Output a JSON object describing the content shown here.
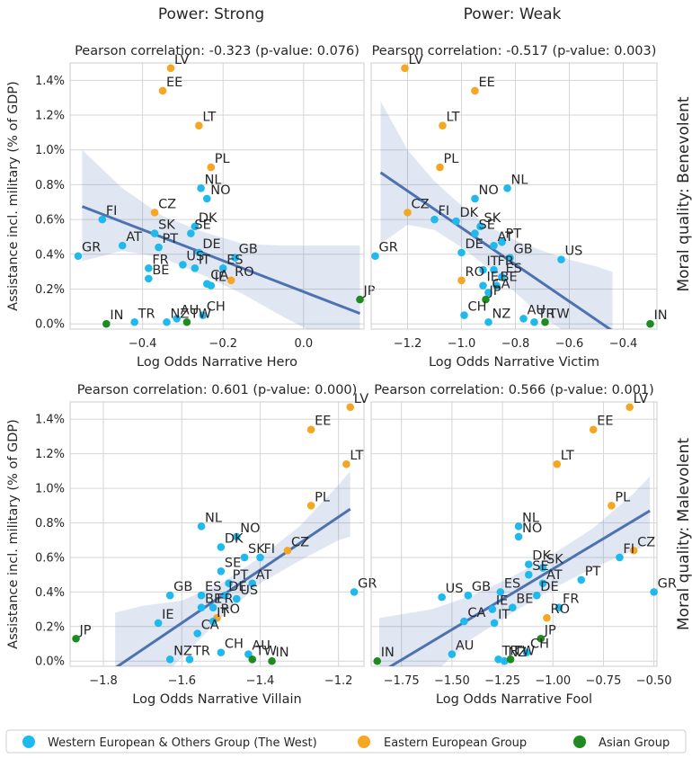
{
  "column_titles": [
    "Power: Strong",
    "Power: Weak"
  ],
  "row_titles": [
    "Moral quality: Benevolent",
    "Moral quality: Malevolent"
  ],
  "legend": [
    {
      "label": "Western European & Others Group (The West)",
      "color": "#1fb9ee"
    },
    {
      "label": "Eastern European Group",
      "color": "#f5a623"
    },
    {
      "label": "Asian Group",
      "color": "#1f8a1f"
    }
  ],
  "chart_data": [
    {
      "type": "scatter",
      "title": "Pearson correlation: -0.323 (p-value: 0.076)",
      "xlabel": "Log Odds Narrative Hero",
      "ylabel": "Assistance incl. military (% of GDP)",
      "xlim": [
        -0.58,
        0.15
      ],
      "ylim": [
        -0.03,
        1.5
      ],
      "xticks": [
        -0.4,
        -0.2,
        0.0
      ],
      "xtick_labels": [
        "−0.4",
        "−0.2",
        "0.0"
      ],
      "yticks": [
        0.0,
        0.2,
        0.4,
        0.6,
        0.8,
        1.0,
        1.2,
        1.4
      ],
      "ytick_labels": [
        "0.0%",
        "0.2%",
        "0.4%",
        "0.6%",
        "0.8%",
        "1.0%",
        "1.2%",
        "1.4%"
      ],
      "fit": {
        "x": [
          -0.55,
          0.14
        ],
        "y": [
          0.675,
          0.06
        ]
      },
      "band": {
        "x": [
          -0.55,
          -0.45,
          -0.35,
          -0.25,
          -0.15,
          -0.05,
          0.05,
          0.14
        ],
        "upper": [
          1.0,
          0.78,
          0.62,
          0.53,
          0.46,
          0.45,
          0.45,
          0.45
        ],
        "lower": [
          0.36,
          0.42,
          0.38,
          0.28,
          0.17,
          0.04,
          -0.08,
          -0.18
        ]
      },
      "points": [
        {
          "label": "LV",
          "x": -0.33,
          "y": 1.47,
          "group": 1
        },
        {
          "label": "EE",
          "x": -0.35,
          "y": 1.34,
          "group": 1
        },
        {
          "label": "LT",
          "x": -0.26,
          "y": 1.14,
          "group": 1
        },
        {
          "label": "PL",
          "x": -0.23,
          "y": 0.9,
          "group": 1
        },
        {
          "label": "NL",
          "x": -0.255,
          "y": 0.78,
          "group": 0
        },
        {
          "label": "NO",
          "x": -0.24,
          "y": 0.72,
          "group": 0
        },
        {
          "label": "CZ",
          "x": -0.37,
          "y": 0.64,
          "group": 1
        },
        {
          "label": "FI",
          "x": -0.5,
          "y": 0.6,
          "group": 0
        },
        {
          "label": "DK",
          "x": -0.27,
          "y": 0.56,
          "group": 0
        },
        {
          "label": "SE",
          "x": -0.28,
          "y": 0.52,
          "group": 0
        },
        {
          "label": "SK",
          "x": -0.37,
          "y": 0.52,
          "group": 0
        },
        {
          "label": "AT",
          "x": -0.45,
          "y": 0.45,
          "group": 0
        },
        {
          "label": "PT",
          "x": -0.36,
          "y": 0.44,
          "group": 0
        },
        {
          "label": "DE",
          "x": -0.26,
          "y": 0.41,
          "group": 0
        },
        {
          "label": "GB",
          "x": -0.17,
          "y": 0.38,
          "group": 0
        },
        {
          "label": "GR",
          "x": -0.56,
          "y": 0.39,
          "group": 0
        },
        {
          "label": "FR",
          "x": -0.385,
          "y": 0.32,
          "group": 0
        },
        {
          "label": "US",
          "x": -0.3,
          "y": 0.34,
          "group": 0
        },
        {
          "label": "IT",
          "x": -0.27,
          "y": 0.32,
          "group": 0
        },
        {
          "label": "ES",
          "x": -0.2,
          "y": 0.32,
          "group": 0
        },
        {
          "label": "BE",
          "x": -0.385,
          "y": 0.26,
          "group": 0
        },
        {
          "label": "CA",
          "x": -0.24,
          "y": 0.23,
          "group": 0
        },
        {
          "label": "IE",
          "x": -0.23,
          "y": 0.22,
          "group": 0
        },
        {
          "label": "RO",
          "x": -0.18,
          "y": 0.25,
          "group": 1
        },
        {
          "label": "JP",
          "x": 0.14,
          "y": 0.14,
          "group": 2
        },
        {
          "label": "AU",
          "x": -0.315,
          "y": 0.03,
          "group": 0
        },
        {
          "label": "CH",
          "x": -0.25,
          "y": 0.05,
          "group": 0
        },
        {
          "label": "IN",
          "x": -0.49,
          "y": 0.0,
          "group": 2
        },
        {
          "label": "TR",
          "x": -0.42,
          "y": 0.01,
          "group": 0
        },
        {
          "label": "NZ",
          "x": -0.34,
          "y": 0.01,
          "group": 0
        },
        {
          "label": "TW",
          "x": -0.29,
          "y": 0.01,
          "group": 2
        }
      ]
    },
    {
      "type": "scatter",
      "title": "Pearson correlation: -0.517 (p-value: 0.003)",
      "xlabel": "Log Odds Narrative Victim",
      "ylabel": "",
      "xlim": [
        -1.335,
        -0.275
      ],
      "ylim": [
        -0.03,
        1.5
      ],
      "xticks": [
        -1.2,
        -1.0,
        -0.8,
        -0.6,
        -0.4
      ],
      "xtick_labels": [
        "−1.2",
        "−1.0",
        "−0.8",
        "−0.6",
        "−0.4"
      ],
      "yticks": [
        0.0,
        0.2,
        0.4,
        0.6,
        0.8,
        1.0,
        1.2,
        1.4
      ],
      "ytick_labels": [],
      "fit": {
        "x": [
          -1.3,
          -0.44
        ],
        "y": [
          0.87,
          -0.04
        ]
      },
      "band": {
        "x": [
          -1.3,
          -1.2,
          -1.1,
          -1.0,
          -0.9,
          -0.8,
          -0.7,
          -0.6,
          -0.5,
          -0.44
        ],
        "upper": [
          1.28,
          1.0,
          0.82,
          0.68,
          0.56,
          0.48,
          0.42,
          0.37,
          0.33,
          0.3
        ],
        "lower": [
          0.46,
          0.57,
          0.54,
          0.44,
          0.32,
          0.18,
          0.04,
          -0.06,
          -0.12,
          -0.16
        ]
      },
      "points": [
        {
          "label": "LV",
          "x": -1.21,
          "y": 1.47,
          "group": 1
        },
        {
          "label": "EE",
          "x": -0.95,
          "y": 1.34,
          "group": 1
        },
        {
          "label": "LT",
          "x": -1.07,
          "y": 1.14,
          "group": 1
        },
        {
          "label": "PL",
          "x": -1.08,
          "y": 0.9,
          "group": 1
        },
        {
          "label": "NL",
          "x": -0.83,
          "y": 0.78,
          "group": 0
        },
        {
          "label": "NO",
          "x": -0.95,
          "y": 0.72,
          "group": 0
        },
        {
          "label": "CZ",
          "x": -1.2,
          "y": 0.64,
          "group": 1
        },
        {
          "label": "FI",
          "x": -1.1,
          "y": 0.6,
          "group": 0
        },
        {
          "label": "DK",
          "x": -1.02,
          "y": 0.59,
          "group": 0
        },
        {
          "label": "SK",
          "x": -0.93,
          "y": 0.56,
          "group": 0
        },
        {
          "label": "SE",
          "x": -0.95,
          "y": 0.52,
          "group": 0
        },
        {
          "label": "PT",
          "x": -0.85,
          "y": 0.47,
          "group": 0
        },
        {
          "label": "AT",
          "x": -0.88,
          "y": 0.45,
          "group": 0
        },
        {
          "label": "GB",
          "x": -0.82,
          "y": 0.38,
          "group": 0
        },
        {
          "label": "US",
          "x": -0.63,
          "y": 0.37,
          "group": 0
        },
        {
          "label": "DE",
          "x": -1.0,
          "y": 0.41,
          "group": 0
        },
        {
          "label": "GR",
          "x": -1.32,
          "y": 0.39,
          "group": 0
        },
        {
          "label": "IT",
          "x": -0.92,
          "y": 0.31,
          "group": 0
        },
        {
          "label": "FR",
          "x": -0.88,
          "y": 0.31,
          "group": 0
        },
        {
          "label": "ES",
          "x": -0.85,
          "y": 0.27,
          "group": 0
        },
        {
          "label": "RO",
          "x": -1.0,
          "y": 0.25,
          "group": 1
        },
        {
          "label": "IE",
          "x": -0.92,
          "y": 0.22,
          "group": 0
        },
        {
          "label": "BE",
          "x": -0.87,
          "y": 0.22,
          "group": 0
        },
        {
          "label": "CA",
          "x": -0.9,
          "y": 0.18,
          "group": 0
        },
        {
          "label": "JP",
          "x": -0.91,
          "y": 0.14,
          "group": 2
        },
        {
          "label": "CH",
          "x": -0.99,
          "y": 0.05,
          "group": 0
        },
        {
          "label": "NZ",
          "x": -0.9,
          "y": 0.01,
          "group": 0
        },
        {
          "label": "AU",
          "x": -0.77,
          "y": 0.03,
          "group": 0
        },
        {
          "label": "TR",
          "x": -0.73,
          "y": 0.01,
          "group": 0
        },
        {
          "label": "TW",
          "x": -0.69,
          "y": 0.01,
          "group": 2
        },
        {
          "label": "IN",
          "x": -0.3,
          "y": 0.0,
          "group": 2
        }
      ]
    },
    {
      "type": "scatter",
      "title": "Pearson correlation: 0.601 (p-value: 0.000)",
      "xlabel": "Log Odds Narrative Villain",
      "ylabel": "Assistance incl. military (% of GDP)",
      "xlim": [
        -1.885,
        -1.135
      ],
      "ylim": [
        -0.03,
        1.5
      ],
      "xticks": [
        -1.8,
        -1.6,
        -1.4,
        -1.2
      ],
      "xtick_labels": [
        "−1.8",
        "−1.6",
        "−1.4",
        "−1.2"
      ],
      "yticks": [
        0.0,
        0.2,
        0.4,
        0.6,
        0.8,
        1.0,
        1.2,
        1.4
      ],
      "ytick_labels": [
        "0.0%",
        "0.2%",
        "0.4%",
        "0.6%",
        "0.8%",
        "1.0%",
        "1.2%",
        "1.4%"
      ],
      "fit": {
        "x": [
          -1.77,
          -1.17
        ],
        "y": [
          -0.04,
          0.88
        ]
      },
      "band": {
        "x": [
          -1.77,
          -1.7,
          -1.6,
          -1.5,
          -1.4,
          -1.3,
          -1.2,
          -1.17
        ],
        "upper": [
          0.28,
          0.32,
          0.35,
          0.45,
          0.6,
          0.78,
          1.02,
          1.1
        ],
        "lower": [
          -0.38,
          -0.2,
          0.02,
          0.25,
          0.45,
          0.58,
          0.7,
          0.72
        ]
      },
      "points": [
        {
          "label": "LV",
          "x": -1.17,
          "y": 1.47,
          "group": 1
        },
        {
          "label": "EE",
          "x": -1.27,
          "y": 1.34,
          "group": 1
        },
        {
          "label": "LT",
          "x": -1.18,
          "y": 1.14,
          "group": 1
        },
        {
          "label": "PL",
          "x": -1.27,
          "y": 0.9,
          "group": 1
        },
        {
          "label": "NL",
          "x": -1.55,
          "y": 0.78,
          "group": 0
        },
        {
          "label": "NO",
          "x": -1.46,
          "y": 0.72,
          "group": 0
        },
        {
          "label": "DK",
          "x": -1.5,
          "y": 0.66,
          "group": 0
        },
        {
          "label": "CZ",
          "x": -1.33,
          "y": 0.64,
          "group": 1
        },
        {
          "label": "SK",
          "x": -1.44,
          "y": 0.6,
          "group": 0
        },
        {
          "label": "FI",
          "x": -1.4,
          "y": 0.6,
          "group": 0
        },
        {
          "label": "SE",
          "x": -1.5,
          "y": 0.52,
          "group": 0
        },
        {
          "label": "PT",
          "x": -1.48,
          "y": 0.45,
          "group": 0
        },
        {
          "label": "AT",
          "x": -1.42,
          "y": 0.45,
          "group": 0
        },
        {
          "label": "GR",
          "x": -1.16,
          "y": 0.4,
          "group": 0
        },
        {
          "label": "GB",
          "x": -1.63,
          "y": 0.38,
          "group": 0
        },
        {
          "label": "ES",
          "x": -1.55,
          "y": 0.38,
          "group": 0
        },
        {
          "label": "DE",
          "x": -1.49,
          "y": 0.38,
          "group": 0
        },
        {
          "label": "US",
          "x": -1.46,
          "y": 0.36,
          "group": 0
        },
        {
          "label": "BE",
          "x": -1.55,
          "y": 0.31,
          "group": 0
        },
        {
          "label": "FR",
          "x": -1.52,
          "y": 0.31,
          "group": 0
        },
        {
          "label": "RO",
          "x": -1.51,
          "y": 0.25,
          "group": 1
        },
        {
          "label": "IT",
          "x": -1.52,
          "y": 0.23,
          "group": 0
        },
        {
          "label": "IE",
          "x": -1.66,
          "y": 0.22,
          "group": 0
        },
        {
          "label": "CA",
          "x": -1.56,
          "y": 0.16,
          "group": 0
        },
        {
          "label": "JP",
          "x": -1.87,
          "y": 0.13,
          "group": 2
        },
        {
          "label": "TR",
          "x": -1.58,
          "y": 0.01,
          "group": 0
        },
        {
          "label": "NZ",
          "x": -1.63,
          "y": 0.01,
          "group": 0
        },
        {
          "label": "CH",
          "x": -1.5,
          "y": 0.05,
          "group": 0
        },
        {
          "label": "AU",
          "x": -1.43,
          "y": 0.04,
          "group": 0
        },
        {
          "label": "TW",
          "x": -1.42,
          "y": 0.01,
          "group": 2
        },
        {
          "label": "IN",
          "x": -1.37,
          "y": 0.0,
          "group": 2
        }
      ]
    },
    {
      "type": "scatter",
      "title": "Pearson correlation: 0.566 (p-value: 0.001)",
      "xlabel": "Log Odds Narrative Fool",
      "ylabel": "",
      "xlim": [
        -1.9,
        -0.485
      ],
      "ylim": [
        -0.03,
        1.5
      ],
      "xticks": [
        -1.75,
        -1.5,
        -1.25,
        -1.0,
        -0.75,
        -0.5
      ],
      "xtick_labels": [
        "−1.75",
        "−1.50",
        "−1.25",
        "−1.00",
        "−0.75",
        "−0.50"
      ],
      "yticks": [
        0.0,
        0.2,
        0.4,
        0.6,
        0.8,
        1.0,
        1.2,
        1.4
      ],
      "ytick_labels": [],
      "fit": {
        "x": [
          -1.86,
          -0.52
        ],
        "y": [
          -0.07,
          0.87
        ]
      },
      "band": {
        "x": [
          -1.86,
          -1.6,
          -1.4,
          -1.2,
          -1.0,
          -0.8,
          -0.6,
          -0.52
        ],
        "upper": [
          0.25,
          0.3,
          0.38,
          0.49,
          0.62,
          0.77,
          0.97,
          1.07
        ],
        "lower": [
          -0.4,
          -0.08,
          0.13,
          0.28,
          0.42,
          0.54,
          0.64,
          0.68
        ]
      },
      "points": [
        {
          "label": "LV",
          "x": -0.62,
          "y": 1.47,
          "group": 1
        },
        {
          "label": "EE",
          "x": -0.8,
          "y": 1.34,
          "group": 1
        },
        {
          "label": "LT",
          "x": -0.98,
          "y": 1.14,
          "group": 1
        },
        {
          "label": "PL",
          "x": -0.71,
          "y": 0.9,
          "group": 1
        },
        {
          "label": "NL",
          "x": -1.17,
          "y": 0.78,
          "group": 0
        },
        {
          "label": "NO",
          "x": -1.17,
          "y": 0.72,
          "group": 0
        },
        {
          "label": "CZ",
          "x": -0.6,
          "y": 0.64,
          "group": 1
        },
        {
          "label": "FI",
          "x": -0.67,
          "y": 0.6,
          "group": 0
        },
        {
          "label": "DK",
          "x": -1.12,
          "y": 0.56,
          "group": 0
        },
        {
          "label": "SK",
          "x": -1.05,
          "y": 0.54,
          "group": 0
        },
        {
          "label": "SE",
          "x": -1.12,
          "y": 0.5,
          "group": 0
        },
        {
          "label": "AT",
          "x": -1.05,
          "y": 0.45,
          "group": 0
        },
        {
          "label": "PT",
          "x": -0.86,
          "y": 0.47,
          "group": 0
        },
        {
          "label": "GR",
          "x": -0.5,
          "y": 0.4,
          "group": 0
        },
        {
          "label": "US",
          "x": -1.55,
          "y": 0.37,
          "group": 0
        },
        {
          "label": "GB",
          "x": -1.42,
          "y": 0.38,
          "group": 0
        },
        {
          "label": "ES",
          "x": -1.26,
          "y": 0.4,
          "group": 0
        },
        {
          "label": "DE",
          "x": -1.08,
          "y": 0.38,
          "group": 0
        },
        {
          "label": "BE",
          "x": -1.2,
          "y": 0.31,
          "group": 0
        },
        {
          "label": "FR",
          "x": -0.97,
          "y": 0.31,
          "group": 0
        },
        {
          "label": "IE",
          "x": -1.3,
          "y": 0.3,
          "group": 0
        },
        {
          "label": "RO",
          "x": -1.03,
          "y": 0.25,
          "group": 1
        },
        {
          "label": "CA",
          "x": -1.44,
          "y": 0.23,
          "group": 0
        },
        {
          "label": "IT",
          "x": -1.29,
          "y": 0.22,
          "group": 0
        },
        {
          "label": "JP",
          "x": -1.06,
          "y": 0.13,
          "group": 2
        },
        {
          "label": "CH",
          "x": -1.13,
          "y": 0.05,
          "group": 0
        },
        {
          "label": "AU",
          "x": -1.5,
          "y": 0.04,
          "group": 0
        },
        {
          "label": "TR",
          "x": -1.27,
          "y": 0.01,
          "group": 0
        },
        {
          "label": "NZ",
          "x": -1.24,
          "y": 0.0,
          "group": 0
        },
        {
          "label": "TW",
          "x": -1.21,
          "y": 0.01,
          "group": 2
        },
        {
          "label": "IN",
          "x": -1.87,
          "y": 0.0,
          "group": 2
        }
      ]
    }
  ]
}
